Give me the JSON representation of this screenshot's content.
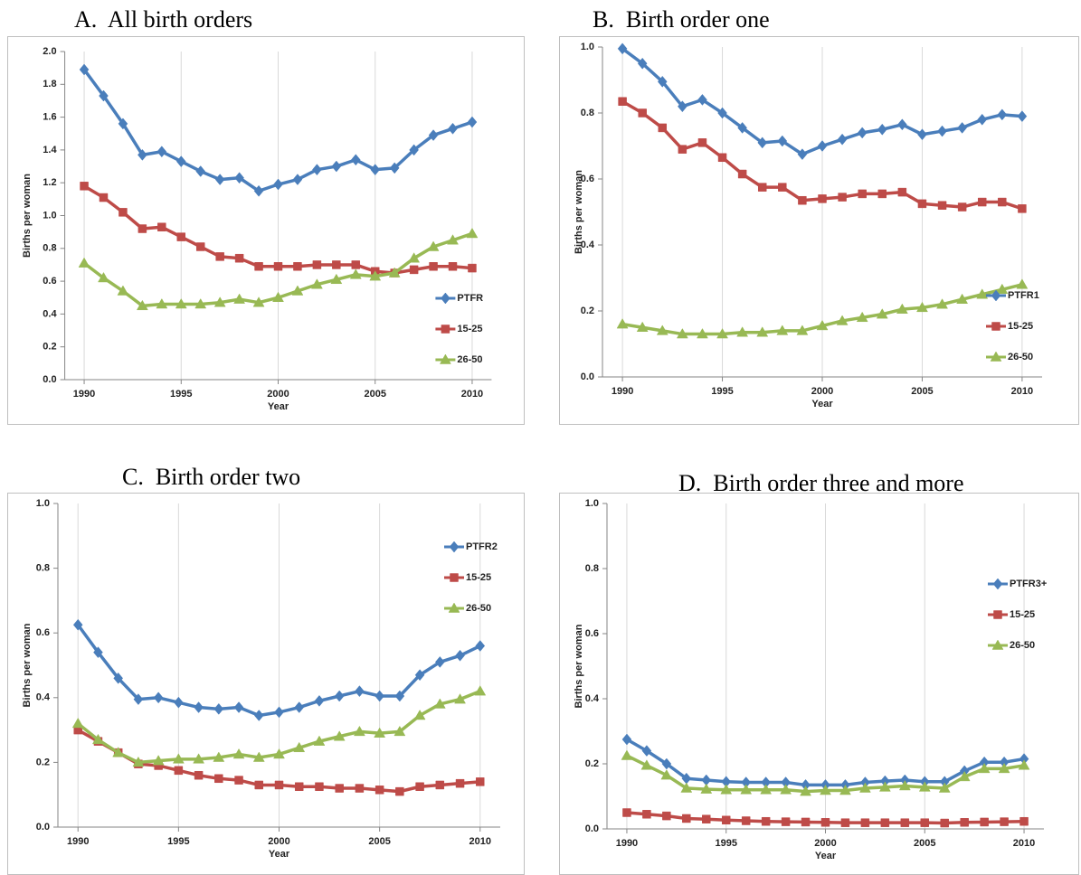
{
  "chart_data": [
    {
      "type": "line",
      "title": "A.  All birth orders",
      "x_label": "Year",
      "y_label": "Births per woman",
      "x": [
        1990,
        1991,
        1992,
        1993,
        1994,
        1995,
        1996,
        1997,
        1998,
        1999,
        2000,
        2001,
        2002,
        2003,
        2004,
        2005,
        2006,
        2007,
        2008,
        2009,
        2010
      ],
      "series": [
        {
          "name": "PTFR",
          "color": "#4a7ebb",
          "values": [
            1.89,
            1.73,
            1.56,
            1.37,
            1.39,
            1.33,
            1.27,
            1.22,
            1.23,
            1.15,
            1.19,
            1.22,
            1.28,
            1.3,
            1.34,
            1.28,
            1.29,
            1.4,
            1.49,
            1.53,
            1.57
          ]
        },
        {
          "name": "15-25",
          "color": "#be4b48",
          "values": [
            1.18,
            1.11,
            1.02,
            0.92,
            0.93,
            0.87,
            0.81,
            0.75,
            0.74,
            0.69,
            0.69,
            0.69,
            0.7,
            0.7,
            0.7,
            0.66,
            0.65,
            0.67,
            0.69,
            0.69,
            0.68
          ]
        },
        {
          "name": "26-50",
          "color": "#98b954",
          "values": [
            0.71,
            0.62,
            0.54,
            0.45,
            0.46,
            0.46,
            0.46,
            0.47,
            0.49,
            0.47,
            0.5,
            0.54,
            0.58,
            0.61,
            0.64,
            0.63,
            0.65,
            0.74,
            0.81,
            0.85,
            0.89
          ]
        }
      ],
      "xlim": [
        1989,
        2011
      ],
      "xticks": [
        1990,
        1995,
        2000,
        2005,
        2010
      ],
      "ylim": [
        0,
        2
      ],
      "yticks": [
        {
          "value": 0,
          "label": "0.0"
        },
        0.2,
        0.4,
        0.6,
        0.8,
        {
          "value": 1,
          "label": "1.0"
        },
        1.2,
        1.4,
        1.6,
        1.8,
        {
          "value": 2,
          "label": "2.0"
        }
      ],
      "grid": "x",
      "legend": "lower right"
    },
    {
      "type": "line",
      "title": "B.  Birth order one",
      "x_label": "Year",
      "y_label": "Births per woman",
      "x": [
        1990,
        1991,
        1992,
        1993,
        1994,
        1995,
        1996,
        1997,
        1998,
        1999,
        2000,
        2001,
        2002,
        2003,
        2004,
        2005,
        2006,
        2007,
        2008,
        2009,
        2010
      ],
      "series": [
        {
          "name": "PTFR1",
          "color": "#4a7ebb",
          "values": [
            0.995,
            0.95,
            0.895,
            0.82,
            0.84,
            0.8,
            0.755,
            0.71,
            0.715,
            0.675,
            0.7,
            0.72,
            0.74,
            0.75,
            0.765,
            0.735,
            0.745,
            0.755,
            0.78,
            0.795,
            0.79
          ]
        },
        {
          "name": "15-25",
          "color": "#be4b48",
          "values": [
            0.835,
            0.8,
            0.755,
            0.69,
            0.71,
            0.665,
            0.615,
            0.575,
            0.575,
            0.535,
            0.54,
            0.545,
            0.555,
            0.555,
            0.56,
            0.525,
            0.52,
            0.515,
            0.53,
            0.53,
            0.51
          ]
        },
        {
          "name": "26-50",
          "color": "#98b954",
          "values": [
            0.16,
            0.15,
            0.14,
            0.13,
            0.13,
            0.13,
            0.135,
            0.135,
            0.14,
            0.14,
            0.155,
            0.17,
            0.18,
            0.19,
            0.205,
            0.21,
            0.22,
            0.235,
            0.25,
            0.265,
            0.28
          ]
        }
      ],
      "xlim": [
        1989,
        2011
      ],
      "xticks": [
        1990,
        1995,
        2000,
        2005,
        2010
      ],
      "ylim": [
        0,
        1
      ],
      "yticks": [
        {
          "value": 0,
          "label": "0.0"
        },
        0.2,
        0.4,
        0.6,
        0.8,
        {
          "value": 1,
          "label": "1.0"
        }
      ],
      "grid": "x",
      "legend": "lower right"
    },
    {
      "type": "line",
      "title": "C.  Birth order two",
      "x_label": "Year",
      "y_label": "Births per woman",
      "x": [
        1990,
        1991,
        1992,
        1993,
        1994,
        1995,
        1996,
        1997,
        1998,
        1999,
        2000,
        2001,
        2002,
        2003,
        2004,
        2005,
        2006,
        2007,
        2008,
        2009,
        2010
      ],
      "series": [
        {
          "name": "PTFR2",
          "color": "#4a7ebb",
          "values": [
            0.625,
            0.54,
            0.46,
            0.395,
            0.4,
            0.385,
            0.37,
            0.365,
            0.37,
            0.345,
            0.355,
            0.37,
            0.39,
            0.405,
            0.42,
            0.405,
            0.405,
            0.47,
            0.51,
            0.53,
            0.56
          ]
        },
        {
          "name": "15-25",
          "color": "#be4b48",
          "values": [
            0.3,
            0.265,
            0.23,
            0.195,
            0.19,
            0.175,
            0.16,
            0.15,
            0.145,
            0.13,
            0.13,
            0.125,
            0.125,
            0.12,
            0.12,
            0.115,
            0.11,
            0.125,
            0.13,
            0.135,
            0.14
          ]
        },
        {
          "name": "26-50",
          "color": "#98b954",
          "values": [
            0.32,
            0.27,
            0.23,
            0.2,
            0.205,
            0.21,
            0.21,
            0.215,
            0.225,
            0.215,
            0.225,
            0.245,
            0.265,
            0.28,
            0.295,
            0.29,
            0.295,
            0.345,
            0.38,
            0.395,
            0.42
          ]
        }
      ],
      "xlim": [
        1989,
        2011
      ],
      "xticks": [
        1990,
        1995,
        2000,
        2005,
        2010
      ],
      "ylim": [
        0,
        1
      ],
      "yticks": [
        {
          "value": 0,
          "label": "0.0"
        },
        0.2,
        0.4,
        0.6,
        0.8,
        {
          "value": 1,
          "label": "1.0"
        }
      ],
      "grid": "x",
      "legend": "upper right"
    },
    {
      "type": "line",
      "title": "D.  Birth order three and more",
      "x_label": "Year",
      "y_label": "Births per woman",
      "x": [
        1990,
        1991,
        1992,
        1993,
        1994,
        1995,
        1996,
        1997,
        1998,
        1999,
        2000,
        2001,
        2002,
        2003,
        2004,
        2005,
        2006,
        2007,
        2008,
        2009,
        2010
      ],
      "series": [
        {
          "name": "PTFR3+",
          "color": "#4a7ebb",
          "values": [
            0.275,
            0.24,
            0.2,
            0.155,
            0.15,
            0.145,
            0.143,
            0.143,
            0.143,
            0.135,
            0.135,
            0.135,
            0.143,
            0.147,
            0.15,
            0.145,
            0.145,
            0.178,
            0.205,
            0.205,
            0.215
          ]
        },
        {
          "name": "15-25",
          "color": "#be4b48",
          "values": [
            0.05,
            0.045,
            0.04,
            0.032,
            0.03,
            0.027,
            0.025,
            0.023,
            0.022,
            0.021,
            0.02,
            0.019,
            0.019,
            0.019,
            0.019,
            0.019,
            0.018,
            0.02,
            0.021,
            0.022,
            0.023
          ]
        },
        {
          "name": "26-50",
          "color": "#98b954",
          "values": [
            0.225,
            0.195,
            0.165,
            0.125,
            0.122,
            0.12,
            0.12,
            0.12,
            0.12,
            0.115,
            0.118,
            0.118,
            0.125,
            0.128,
            0.132,
            0.128,
            0.125,
            0.16,
            0.185,
            0.185,
            0.195
          ]
        }
      ],
      "xlim": [
        1989,
        2011
      ],
      "xticks": [
        1990,
        1995,
        2000,
        2005,
        2010
      ],
      "ylim": [
        0,
        1
      ],
      "yticks": [
        {
          "value": 0,
          "label": "0.0"
        },
        0.2,
        0.4,
        0.6,
        0.8,
        {
          "value": 1,
          "label": "1.0"
        }
      ],
      "grid": "x",
      "legend": "upper right"
    }
  ]
}
